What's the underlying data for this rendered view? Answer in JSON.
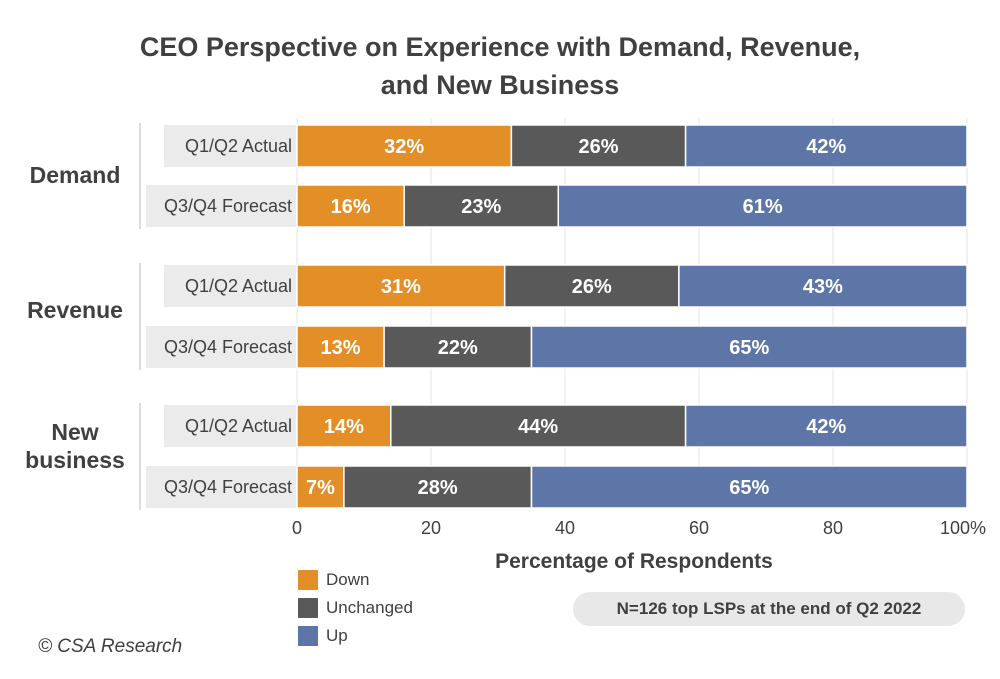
{
  "chart_data": {
    "type": "bar",
    "orientation": "horizontal",
    "stacked": true,
    "title": "CEO Perspective on Experience with Demand, Revenue, and New Business",
    "title_lines": [
      "CEO Perspective on Experience with Demand, Revenue,",
      "and New Business"
    ],
    "xlabel": "Percentage of Respondents",
    "xlim": [
      0,
      100
    ],
    "xticks": [
      "0",
      "20",
      "40",
      "60",
      "80",
      "100%"
    ],
    "groups": [
      {
        "name_lines": [
          "Demand"
        ],
        "rows": [
          {
            "label": "Q1/Q2 Actual",
            "values": [
              32,
              26,
              42
            ],
            "labels": [
              "32%",
              "26%",
              "42%"
            ]
          },
          {
            "label": "Q3/Q4 Forecast",
            "values": [
              16,
              23,
              61
            ],
            "labels": [
              "16%",
              "23%",
              "61%"
            ]
          }
        ]
      },
      {
        "name_lines": [
          "Revenue"
        ],
        "rows": [
          {
            "label": "Q1/Q2 Actual",
            "values": [
              31,
              26,
              43
            ],
            "labels": [
              "31%",
              "26%",
              "43%"
            ]
          },
          {
            "label": "Q3/Q4 Forecast",
            "values": [
              13,
              22,
              65
            ],
            "labels": [
              "13%",
              "22%",
              "65%"
            ]
          }
        ]
      },
      {
        "name_lines": [
          "New",
          "business"
        ],
        "rows": [
          {
            "label": "Q1/Q2 Actual",
            "values": [
              14,
              44,
              42
            ],
            "labels": [
              "14%",
              "44%",
              "42%"
            ]
          },
          {
            "label": "Q3/Q4 Forecast",
            "values": [
              7,
              28,
              65
            ],
            "labels": [
              "7%",
              "28%",
              "65%"
            ]
          }
        ]
      }
    ],
    "series": [
      {
        "name": "Down",
        "color": "#e38e26"
      },
      {
        "name": "Unchanged",
        "color": "#595959"
      },
      {
        "name": "Up",
        "color": "#5e76a7"
      }
    ],
    "grid": true,
    "legend_position": "bottom-left"
  },
  "note": "N=126 top LSPs at the end of Q2 2022",
  "copyright": "© CSA Research"
}
